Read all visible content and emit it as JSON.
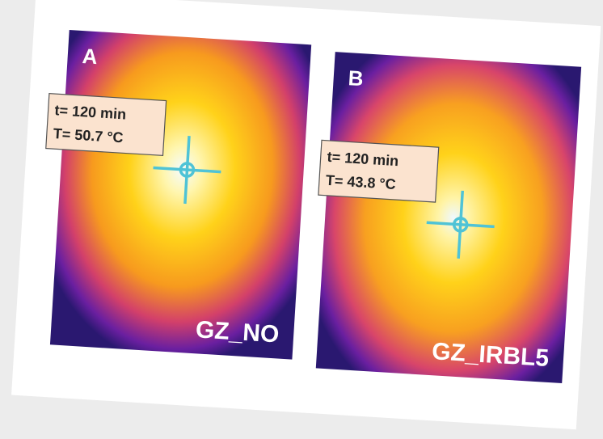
{
  "panels": [
    {
      "letter": "A",
      "time": "t= 120 min",
      "temperature": "T= 50.7 °C",
      "label": "GZ_NO"
    },
    {
      "letter": "B",
      "time": "t= 120 min",
      "temperature": "T= 43.8 °C",
      "label": "GZ_IRBL5"
    }
  ]
}
